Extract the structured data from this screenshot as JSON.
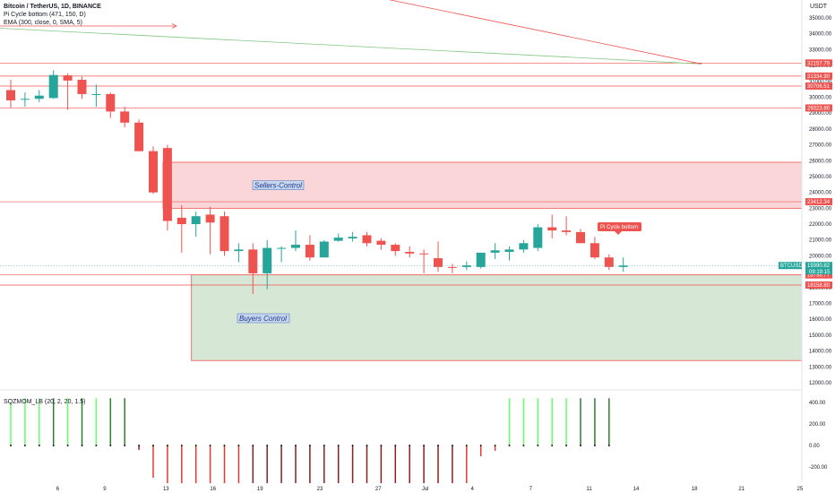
{
  "header": {
    "title": "Bitcoin / TetherUS, 1D, BINANCE",
    "indicator1": "Pi Cycle bottom (471, 150, D)",
    "indicator2": "EMA (300, close, 0, SMA, 5)"
  },
  "currency": "USDT",
  "indicator_panel": {
    "label": "SQZMOM_LB (20, 2, 20, 1.5)"
  },
  "annotations": {
    "sellers": "Sellers-Control",
    "buyers": "Buyers Control",
    "pi_cycle": "Pi Cycle bottom"
  },
  "price_tags": {
    "symbol": "BTCUSDT",
    "price": "19390.82",
    "countdown": "09:19:15"
  },
  "colors": {
    "up": "#26a69a",
    "down": "#ef5350",
    "sellers_zone": "#f8c8cc",
    "buyers_zone": "#cfe3cf",
    "ema": "#81c784",
    "mom_bright_green": "#66ff66",
    "mom_dark_green": "#2e7d32",
    "mom_red": "#e53935",
    "mom_dark_red": "#8b1e1e"
  },
  "chart_data": [
    {
      "type": "candlestick",
      "title": "Bitcoin / TetherUS, 1D, BINANCE",
      "x_ticks": [
        "6",
        "9",
        "13",
        "16",
        "19",
        "23",
        "27",
        "Jul",
        "4",
        "7",
        "11",
        "14",
        "18",
        "21",
        "25"
      ],
      "y_ticks": [
        "35000.00",
        "34000.00",
        "33000.00",
        "32000.00",
        "31000.00",
        "30000.00",
        "29000.00",
        "28000.00",
        "27000.00",
        "26000.00",
        "25000.00",
        "24000.00",
        "23000.00",
        "22000.00",
        "21000.00",
        "20000.00",
        "19000.00",
        "18000.00",
        "17000.00",
        "16000.00",
        "15000.00",
        "14000.00",
        "13000.00",
        "12000.00"
      ],
      "ylim": [
        11600,
        35900
      ],
      "candles": [
        {
          "day": 0,
          "o": 30450,
          "h": 31100,
          "l": 29350,
          "c": 29800
        },
        {
          "day": 1,
          "o": 29850,
          "h": 30300,
          "l": 29400,
          "c": 29900
        },
        {
          "day": 2,
          "o": 29900,
          "h": 30450,
          "l": 29700,
          "c": 30100
        },
        {
          "day": 3,
          "o": 29950,
          "h": 31700,
          "l": 29900,
          "c": 31400
        },
        {
          "day": 4,
          "o": 31380,
          "h": 31500,
          "l": 29200,
          "c": 31050
        },
        {
          "day": 5,
          "o": 31100,
          "h": 31300,
          "l": 29900,
          "c": 30200
        },
        {
          "day": 6,
          "o": 30150,
          "h": 30800,
          "l": 29400,
          "c": 30200
        },
        {
          "day": 7,
          "o": 30200,
          "h": 30300,
          "l": 28700,
          "c": 29100
        },
        {
          "day": 8,
          "o": 29100,
          "h": 29400,
          "l": 28100,
          "c": 28400
        },
        {
          "day": 9,
          "o": 28400,
          "h": 28600,
          "l": 26600,
          "c": 26600
        },
        {
          "day": 10,
          "o": 26600,
          "h": 26900,
          "l": 23900,
          "c": 24000
        },
        {
          "day": 11,
          "o": 26800,
          "h": 27000,
          "l": 21600,
          "c": 22200
        },
        {
          "day": 12,
          "o": 22400,
          "h": 23200,
          "l": 20200,
          "c": 22000
        },
        {
          "day": 13,
          "o": 22000,
          "h": 22800,
          "l": 21200,
          "c": 22500
        },
        {
          "day": 14,
          "o": 22600,
          "h": 23100,
          "l": 20100,
          "c": 22100
        },
        {
          "day": 15,
          "o": 22500,
          "h": 22800,
          "l": 20000,
          "c": 20300
        },
        {
          "day": 16,
          "o": 20300,
          "h": 20800,
          "l": 19600,
          "c": 20400
        },
        {
          "day": 17,
          "o": 20400,
          "h": 20800,
          "l": 17600,
          "c": 18900
        },
        {
          "day": 18,
          "o": 18900,
          "h": 21000,
          "l": 17900,
          "c": 20500
        },
        {
          "day": 19,
          "o": 20500,
          "h": 20600,
          "l": 19600,
          "c": 20500
        },
        {
          "day": 20,
          "o": 20500,
          "h": 21600,
          "l": 20300,
          "c": 20700
        },
        {
          "day": 21,
          "o": 20700,
          "h": 21300,
          "l": 19700,
          "c": 19900
        },
        {
          "day": 22,
          "o": 19900,
          "h": 21000,
          "l": 19900,
          "c": 20900
        },
        {
          "day": 23,
          "o": 20950,
          "h": 21400,
          "l": 20900,
          "c": 21150
        },
        {
          "day": 24,
          "o": 21100,
          "h": 21500,
          "l": 20900,
          "c": 21200
        },
        {
          "day": 25,
          "o": 21300,
          "h": 21500,
          "l": 20600,
          "c": 20800
        },
        {
          "day": 26,
          "o": 20950,
          "h": 21100,
          "l": 20400,
          "c": 20700
        },
        {
          "day": 27,
          "o": 20700,
          "h": 20800,
          "l": 20000,
          "c": 20300
        },
        {
          "day": 28,
          "o": 20250,
          "h": 20600,
          "l": 19900,
          "c": 20150
        },
        {
          "day": 29,
          "o": 20150,
          "h": 20400,
          "l": 18900,
          "c": 20100
        },
        {
          "day": 30,
          "o": 19850,
          "h": 20900,
          "l": 19000,
          "c": 19300
        },
        {
          "day": 31,
          "o": 19300,
          "h": 19500,
          "l": 18900,
          "c": 19250
        },
        {
          "day": 32,
          "o": 19300,
          "h": 19650,
          "l": 19100,
          "c": 19400
        },
        {
          "day": 33,
          "o": 19300,
          "h": 20100,
          "l": 19200,
          "c": 20200
        },
        {
          "day": 34,
          "o": 20200,
          "h": 20800,
          "l": 19800,
          "c": 20350
        },
        {
          "day": 35,
          "o": 20250,
          "h": 20600,
          "l": 19700,
          "c": 20400
        },
        {
          "day": 36,
          "o": 20400,
          "h": 21000,
          "l": 20200,
          "c": 20800
        },
        {
          "day": 37,
          "o": 20500,
          "h": 22000,
          "l": 20300,
          "c": 21800
        },
        {
          "day": 38,
          "o": 21800,
          "h": 22600,
          "l": 21100,
          "c": 21600
        },
        {
          "day": 39,
          "o": 21600,
          "h": 22500,
          "l": 21300,
          "c": 21500
        },
        {
          "day": 40,
          "o": 21500,
          "h": 21700,
          "l": 20800,
          "c": 20800
        },
        {
          "day": 41,
          "o": 20800,
          "h": 21200,
          "l": 19800,
          "c": 19900
        },
        {
          "day": 42,
          "o": 19900,
          "h": 20100,
          "l": 19100,
          "c": 19300
        },
        {
          "day": 43,
          "o": 19300,
          "h": 19900,
          "l": 19000,
          "c": 19390
        }
      ],
      "horizontal_lines": [
        32157.79,
        31334.9,
        30706.51,
        29323.86,
        23412.34,
        18798.77,
        18158.8
      ],
      "price_labels": [
        "32157.79",
        "31334.90",
        "30706.51",
        "29323.86",
        "23412.34",
        "18798.77",
        "18158.80"
      ],
      "zones": [
        {
          "name": "Sellers-Control",
          "x_start_day": 11,
          "x_end": "right",
          "y_low": 23000,
          "y_high": 25900
        },
        {
          "name": "Buyers Control",
          "x_start_day": 13,
          "x_end": "right",
          "y_low": 13400,
          "y_high": 18800
        }
      ],
      "trend_lines": [
        {
          "kind": "ema",
          "from": {
            "day": -4,
            "price": 34500
          },
          "to": {
            "day": 48.5,
            "price": 32100
          }
        },
        {
          "kind": "resistance",
          "from": {
            "day": 16,
            "price": 38100
          },
          "to": {
            "day": 48.5,
            "price": 32100
          }
        }
      ]
    },
    {
      "type": "bar",
      "title": "SQZMOM_LB (20, 2, 20, 1.5)",
      "y_ticks": [
        "400.00",
        "200.00",
        "0.00",
        "-200.00"
      ],
      "ylim": [
        -330,
        490
      ],
      "days": [
        0,
        1,
        2,
        3,
        4,
        5,
        6,
        7,
        8,
        9,
        10,
        11,
        12,
        13,
        14,
        15,
        16,
        17,
        18,
        19,
        20,
        21,
        22,
        23,
        24,
        25,
        26,
        27,
        28,
        29,
        30,
        31,
        32,
        33,
        34,
        35,
        36,
        37,
        38,
        39,
        40,
        41,
        42
      ],
      "values": [
        400,
        440,
        440,
        440,
        440,
        440,
        440,
        440,
        440,
        -40,
        -300,
        -350,
        -350,
        -350,
        -350,
        -350,
        -350,
        -350,
        -350,
        -350,
        -350,
        -350,
        -350,
        -350,
        -350,
        -350,
        -350,
        -350,
        -350,
        -350,
        -350,
        -350,
        -350,
        -100,
        -50,
        440,
        440,
        440,
        440,
        440,
        440,
        440,
        440
      ],
      "colors": [
        "bright",
        "bright",
        "bright",
        "dark",
        "bright",
        "dark",
        "bright",
        "dark",
        "dark",
        "dred",
        "red",
        "red",
        "red",
        "red",
        "red",
        "red",
        "red",
        "dred",
        "dred",
        "dred",
        "dred",
        "dred",
        "dred",
        "dred",
        "dred",
        "dred",
        "dred",
        "dred",
        "dred",
        "dred",
        "dred",
        "dred",
        "red",
        "red",
        "red",
        "bright",
        "bright",
        "bright",
        "bright",
        "bright",
        "dark",
        "dark",
        "dark"
      ]
    }
  ]
}
